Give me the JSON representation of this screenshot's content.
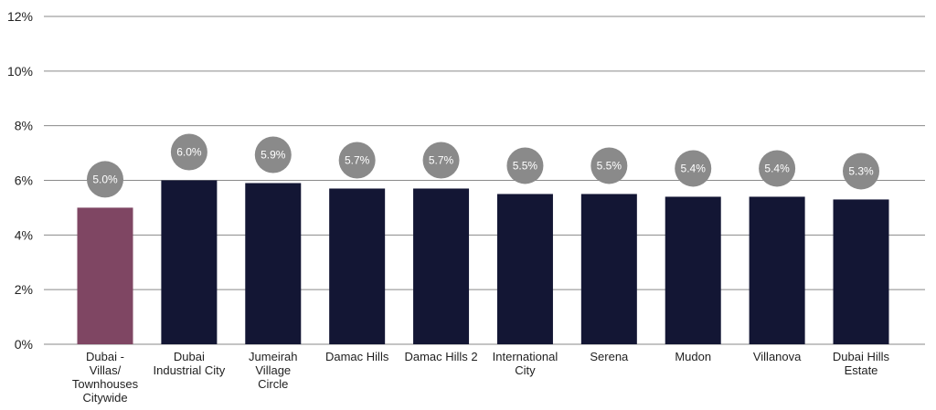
{
  "chart_data": {
    "type": "bar",
    "title": "",
    "xlabel": "",
    "ylabel": "",
    "ylim": [
      0,
      12
    ],
    "yticks": [
      "0%",
      "2%",
      "4%",
      "6%",
      "8%",
      "10%",
      "12%"
    ],
    "ytick_values": [
      0,
      2,
      4,
      6,
      8,
      10,
      12
    ],
    "grid": true,
    "legend": "none",
    "categories": [
      [
        "Dubai -",
        "Villas/",
        "Townhouses",
        "Citywide"
      ],
      [
        "Dubai",
        "Industrial City"
      ],
      [
        "Jumeirah",
        "Village",
        "Circle"
      ],
      [
        "Damac Hills"
      ],
      [
        "Damac Hills 2"
      ],
      [
        "International",
        "City"
      ],
      [
        "Serena"
      ],
      [
        "Mudon"
      ],
      [
        "Villanova"
      ],
      [
        "Dubai Hills",
        "Estate"
      ]
    ],
    "values": [
      5.0,
      6.0,
      5.9,
      5.7,
      5.7,
      5.5,
      5.5,
      5.4,
      5.4,
      5.3
    ],
    "data_labels": [
      "5.0%",
      "6.0%",
      "5.9%",
      "5.7%",
      "5.7%",
      "5.5%",
      "5.5%",
      "5.4%",
      "5.4%",
      "5.3%"
    ],
    "colors": {
      "highlight_bar": "#7f4663",
      "bar": "#131634",
      "label_bubble": "#8a8a8a",
      "gridline": "#8a8a8a"
    },
    "highlight_index": 0
  }
}
